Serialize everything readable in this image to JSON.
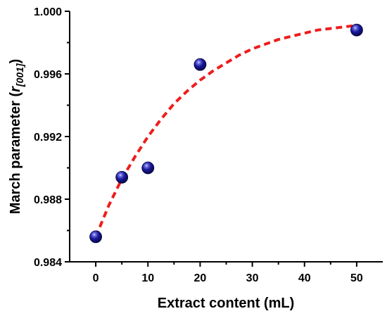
{
  "chart_data": {
    "type": "scatter",
    "xlabel": "Extract content (mL)",
    "ylabel": "March parameter (r[001])",
    "ylabel_main": "March parameter (",
    "ylabel_var": "r",
    "ylabel_sub": "[001]",
    "ylabel_close": ")",
    "xlim": [
      -5,
      55
    ],
    "ylim": [
      0.984,
      1.0
    ],
    "x_ticks": [
      0,
      10,
      20,
      30,
      40,
      50
    ],
    "x_tick_labels": [
      "0",
      "10",
      "20",
      "30",
      "40",
      "50"
    ],
    "y_ticks": [
      0.984,
      0.988,
      0.992,
      0.996,
      1.0
    ],
    "y_tick_labels": [
      "0.984",
      "0.988",
      "0.992",
      "0.996",
      "1.000"
    ],
    "series": [
      {
        "x": [
          0,
          5,
          10,
          20,
          50
        ],
        "y": [
          0.9856,
          0.9894,
          0.99,
          0.9966,
          0.9988
        ],
        "marker_color": "#1a1a8c"
      }
    ],
    "fit": {
      "style": "dashed",
      "color": "#ee1c1c",
      "x": [
        0,
        2.5,
        5,
        7.5,
        10,
        12.5,
        15,
        17.5,
        20,
        22.5,
        25,
        27.5,
        30,
        32.5,
        35,
        37.5,
        40,
        42.5,
        45,
        47.5,
        50
      ],
      "y": [
        0.9856,
        0.9876,
        0.9893,
        0.9907,
        0.992,
        0.9931,
        0.9941,
        0.9949,
        0.9956,
        0.9962,
        0.9967,
        0.9972,
        0.9976,
        0.9979,
        0.9982,
        0.9984,
        0.9986,
        0.9988,
        0.9989,
        0.999,
        0.9991
      ]
    },
    "grid": false,
    "legend": "none"
  }
}
